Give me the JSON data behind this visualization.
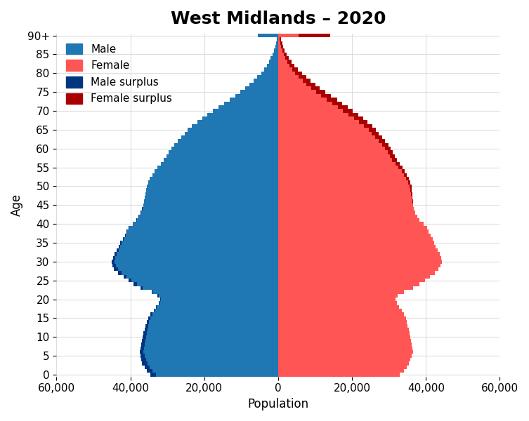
{
  "title": "West Midlands – 2020",
  "xlabel": "Population",
  "ylabel": "Age",
  "male": [
    34500,
    35500,
    36200,
    36800,
    37100,
    37300,
    37500,
    37300,
    37100,
    36900,
    36700,
    36500,
    36200,
    35900,
    35600,
    35200,
    34500,
    33700,
    33000,
    32400,
    31900,
    32700,
    34300,
    37200,
    39100,
    40500,
    41900,
    43300,
    44400,
    44900,
    45100,
    44700,
    44300,
    43700,
    43200,
    42700,
    42100,
    41500,
    41000,
    40500,
    39400,
    38400,
    37800,
    37200,
    36800,
    36500,
    36300,
    36100,
    35900,
    35700,
    35500,
    35200,
    34700,
    34100,
    33500,
    32600,
    31800,
    30900,
    30300,
    29700,
    28900,
    28100,
    27200,
    26200,
    25300,
    24500,
    23300,
    21900,
    20600,
    19100,
    17600,
    16100,
    14600,
    13100,
    11600,
    10300,
    8900,
    7700,
    6600,
    5600,
    4600,
    3800,
    3100,
    2500,
    2000,
    1500,
    1100,
    800,
    600,
    400,
    5500
  ],
  "female": [
    33000,
    34000,
    34800,
    35400,
    35800,
    36200,
    36500,
    36300,
    36100,
    35900,
    35700,
    35500,
    35300,
    35100,
    34900,
    34600,
    34100,
    33500,
    32800,
    32200,
    31800,
    32400,
    34000,
    36600,
    38300,
    39700,
    41100,
    42400,
    43400,
    44000,
    44300,
    44100,
    43700,
    43200,
    42700,
    42300,
    41800,
    41300,
    40800,
    40300,
    39300,
    38200,
    37700,
    37100,
    36700,
    36600,
    36500,
    36400,
    36300,
    36200,
    36100,
    35800,
    35300,
    34800,
    34200,
    33600,
    32900,
    32200,
    31600,
    31100,
    30500,
    29800,
    29000,
    28100,
    27200,
    26500,
    25500,
    24200,
    23000,
    21600,
    20200,
    18800,
    17400,
    15900,
    14200,
    12700,
    11300,
    10000,
    8700,
    7600,
    6400,
    5400,
    4400,
    3600,
    2900,
    2300,
    1800,
    1400,
    1100,
    850,
    14000
  ],
  "male_color": "#1f77b4",
  "female_color": "#ff5555",
  "male_surplus_color": "#003580",
  "female_surplus_color": "#aa0000",
  "xlim": 60000,
  "xticks": [
    -60000,
    -40000,
    -20000,
    0,
    20000,
    40000,
    60000
  ],
  "xticklabels": [
    "60,000",
    "40,000",
    "20,000",
    "0",
    "20,000",
    "40,000",
    "60,000"
  ],
  "ytick_positions": [
    0,
    5,
    10,
    15,
    20,
    25,
    30,
    35,
    40,
    45,
    50,
    55,
    60,
    65,
    70,
    75,
    80,
    85,
    90
  ],
  "title_fontsize": 18,
  "axis_fontsize": 12,
  "tick_fontsize": 11,
  "background_color": "#ffffff",
  "grid_color": "#dddddd"
}
